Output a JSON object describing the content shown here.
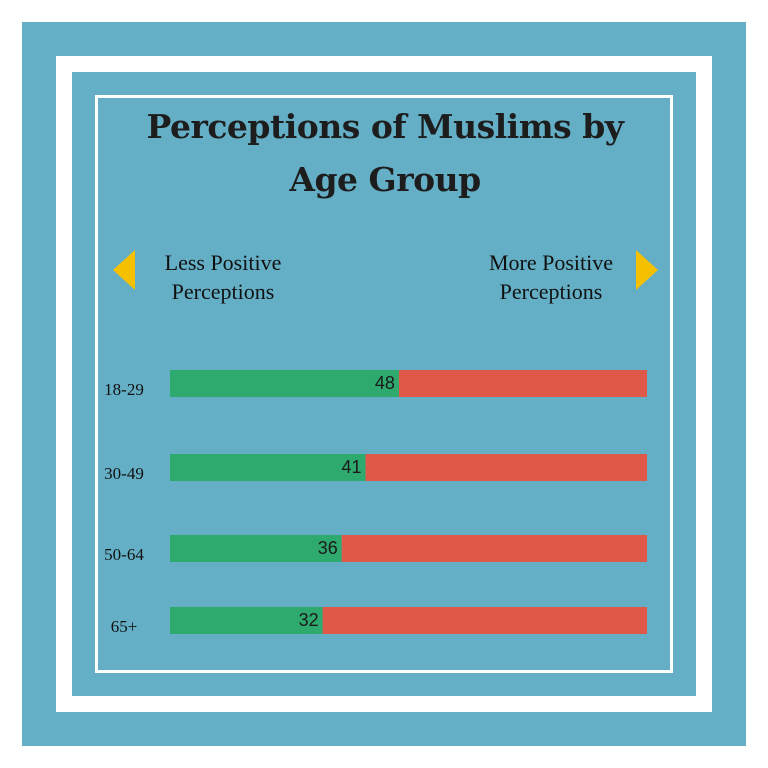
{
  "title": "Perceptions of Muslims by Age Group",
  "left_label": "Less Positive Perceptions",
  "right_label": "More Positive Perceptions",
  "colors": {
    "background": "#64afc6",
    "green": "#2faa6e",
    "red": "#e05848",
    "arrow": "#f5c000"
  },
  "chart_data": {
    "type": "bar",
    "orientation": "horizontal",
    "stacked": true,
    "categories": [
      "18-29",
      "30-49",
      "50-64",
      "65+"
    ],
    "series": [
      {
        "values": [
          48,
          41,
          36,
          32
        ],
        "color": "#2faa6e"
      },
      {
        "values": [
          52,
          59,
          64,
          68
        ],
        "color": "#e05848"
      }
    ],
    "data_labels": [
      "48",
      "41",
      "36",
      "32"
    ],
    "xlim": [
      0,
      100
    ],
    "grid": false
  }
}
